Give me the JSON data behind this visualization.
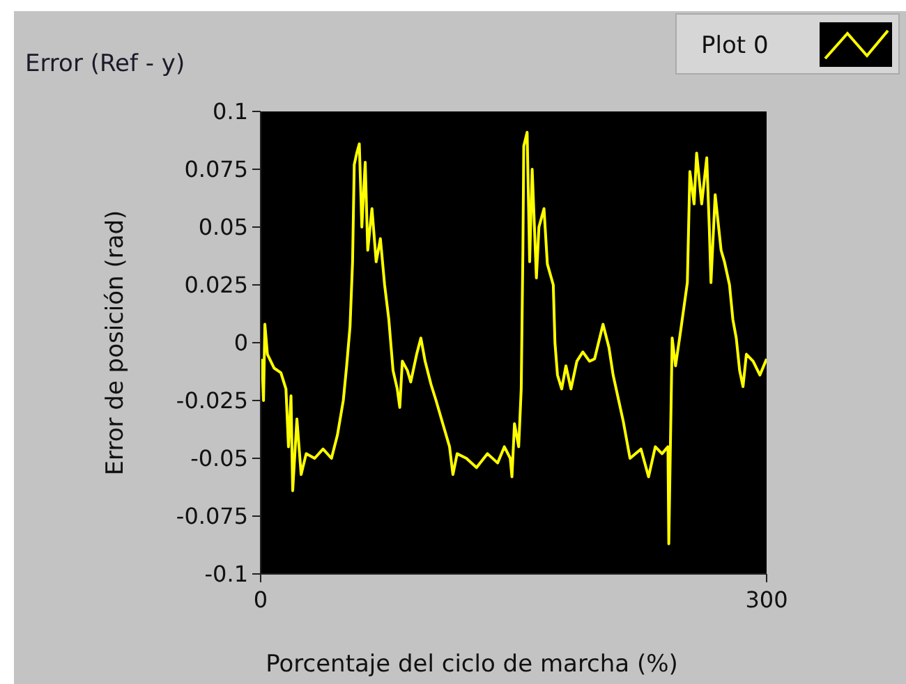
{
  "chart_data": {
    "type": "line",
    "title": "Error (Ref - y)",
    "xlabel": "Porcentaje del ciclo de marcha (%)",
    "ylabel": "Error de posición (rad)",
    "xlim": [
      0,
      300
    ],
    "xticks": [
      0,
      300
    ],
    "ylim": [
      -0.1,
      0.1
    ],
    "yticks": [
      -0.1,
      -0.075,
      -0.05,
      -0.025,
      0,
      0.025,
      0.05,
      0.075,
      0.1
    ],
    "grid": false,
    "legend": "top right",
    "marker": "none",
    "line_style": "solid",
    "x": [
      0.8,
      1.7,
      2.5,
      4,
      8,
      12,
      15,
      16.5,
      18,
      19,
      21.5,
      24,
      27,
      32,
      37,
      42,
      45.5,
      49,
      51,
      53,
      54.5,
      55.5,
      57,
      58.5,
      60,
      62,
      63.5,
      66,
      68.5,
      71,
      73.5,
      76,
      78.5,
      81,
      82.5,
      84,
      87,
      89,
      92.5,
      95,
      97.5,
      101,
      104,
      108,
      112,
      114,
      116.5,
      122,
      128,
      134.5,
      140.5,
      144.5,
      148,
      149,
      150.5,
      153,
      154.5,
      155.5,
      156,
      158,
      159.5,
      161,
      163.5,
      165,
      168,
      170,
      173.5,
      174.5,
      176,
      178.5,
      181,
      184,
      187.5,
      191,
      195,
      198,
      203,
      206.5,
      209,
      215,
      219,
      225.5,
      230,
      234,
      238,
      241.5,
      242,
      244,
      246,
      249,
      253,
      254.5,
      257,
      258.5,
      261.5,
      264.5,
      266,
      267,
      269.5,
      273,
      275,
      278,
      280,
      282,
      284,
      286,
      288,
      292,
      296,
      300
    ],
    "series": [
      {
        "name": "Plot 0",
        "color": "#ffff00",
        "values": [
          -0.007,
          -0.025,
          0.008,
          -0.005,
          -0.011,
          -0.013,
          -0.02,
          -0.045,
          -0.023,
          -0.064,
          -0.033,
          -0.057,
          -0.048,
          -0.05,
          -0.046,
          -0.05,
          -0.04,
          -0.025,
          -0.01,
          0.007,
          0.035,
          0.077,
          0.082,
          0.086,
          0.05,
          0.078,
          0.04,
          0.058,
          0.035,
          0.045,
          0.025,
          0.01,
          -0.012,
          -0.02,
          -0.028,
          -0.008,
          -0.012,
          -0.017,
          -0.005,
          0.002,
          -0.008,
          -0.018,
          -0.025,
          -0.035,
          -0.045,
          -0.057,
          -0.048,
          -0.05,
          -0.054,
          -0.048,
          -0.052,
          -0.045,
          -0.05,
          -0.058,
          -0.035,
          -0.045,
          -0.02,
          0.04,
          0.085,
          0.091,
          0.035,
          0.075,
          0.028,
          0.05,
          0.058,
          0.034,
          0.025,
          0,
          -0.014,
          -0.02,
          -0.01,
          -0.02,
          -0.008,
          -0.004,
          -0.008,
          -0.007,
          0.008,
          -0.002,
          -0.014,
          -0.034,
          -0.05,
          -0.046,
          -0.058,
          -0.045,
          -0.048,
          -0.045,
          -0.087,
          0.002,
          -0.01,
          0.005,
          0.026,
          0.074,
          0.06,
          0.082,
          0.06,
          0.08,
          0.05,
          0.026,
          0.064,
          0.04,
          0.035,
          0.025,
          0.01,
          0.002,
          -0.012,
          -0.019,
          -0.005,
          -0.008,
          -0.014,
          -0.007
        ]
      }
    ]
  }
}
